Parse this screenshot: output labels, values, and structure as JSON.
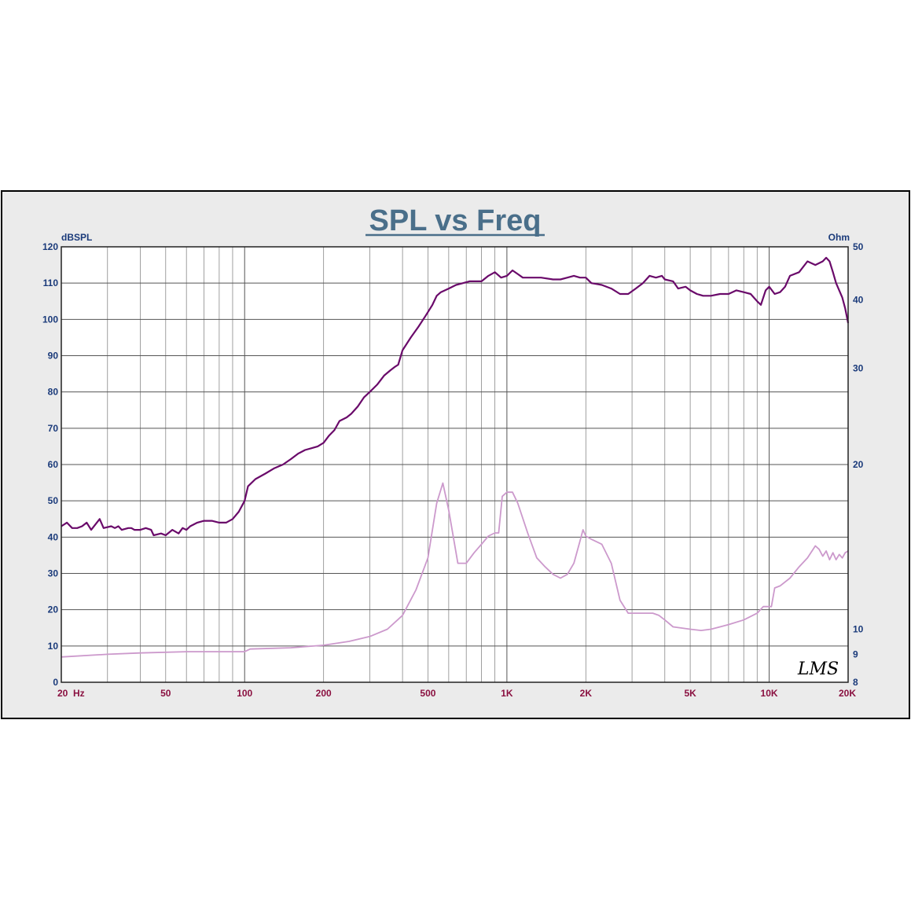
{
  "chart_data": {
    "type": "line",
    "title": "SPL vs Freq",
    "ylabel_left": "dBSPL",
    "ylabel_right": "Ohm",
    "x_scale": "log",
    "xlim": [
      20,
      20000
    ],
    "ylim_left": [
      0,
      120
    ],
    "ylim_right": [
      8,
      50
    ],
    "y_left_ticks": [
      0,
      10,
      20,
      30,
      40,
      50,
      60,
      70,
      80,
      90,
      100,
      110,
      120
    ],
    "y_right_ticks": [
      8,
      9,
      10,
      20,
      30,
      40,
      50
    ],
    "x_tick_labels": [
      {
        "value": 20,
        "label": "20  Hz"
      },
      {
        "value": 50,
        "label": "50"
      },
      {
        "value": 100,
        "label": "100"
      },
      {
        "value": 200,
        "label": "200"
      },
      {
        "value": 500,
        "label": "500"
      },
      {
        "value": 1000,
        "label": "1K"
      },
      {
        "value": 2000,
        "label": "2K"
      },
      {
        "value": 5000,
        "label": "5K"
      },
      {
        "value": 10000,
        "label": "10K"
      },
      {
        "value": 20000,
        "label": "20K"
      }
    ],
    "grid": true,
    "watermark": "LMS",
    "series": [
      {
        "axis": "left",
        "color": "#6a0a6a",
        "points": [
          [
            20,
            43
          ],
          [
            21,
            44
          ],
          [
            22,
            42.5
          ],
          [
            23,
            42.5
          ],
          [
            24,
            43
          ],
          [
            25,
            44
          ],
          [
            26,
            42
          ],
          [
            28,
            45
          ],
          [
            29,
            42.5
          ],
          [
            31,
            43
          ],
          [
            32,
            42.5
          ],
          [
            33,
            43
          ],
          [
            34,
            42
          ],
          [
            36,
            42.5
          ],
          [
            37,
            42.5
          ],
          [
            38,
            42
          ],
          [
            40,
            42
          ],
          [
            42,
            42.5
          ],
          [
            44,
            42
          ],
          [
            45,
            40.5
          ],
          [
            48,
            41
          ],
          [
            50,
            40.5
          ],
          [
            53,
            42
          ],
          [
            56,
            41
          ],
          [
            58,
            42.5
          ],
          [
            60,
            42
          ],
          [
            62,
            43
          ],
          [
            66,
            44
          ],
          [
            70,
            44.5
          ],
          [
            75,
            44.5
          ],
          [
            80,
            44
          ],
          [
            85,
            44
          ],
          [
            90,
            45
          ],
          [
            95,
            47
          ],
          [
            100,
            50
          ],
          [
            103,
            54
          ],
          [
            110,
            56
          ],
          [
            120,
            57.5
          ],
          [
            130,
            59
          ],
          [
            140,
            60
          ],
          [
            150,
            61.5
          ],
          [
            160,
            63
          ],
          [
            170,
            64
          ],
          [
            180,
            64.5
          ],
          [
            190,
            65
          ],
          [
            200,
            66
          ],
          [
            210,
            68
          ],
          [
            220,
            69.5
          ],
          [
            230,
            72
          ],
          [
            245,
            73
          ],
          [
            255,
            74
          ],
          [
            270,
            76
          ],
          [
            285,
            78.5
          ],
          [
            300,
            80
          ],
          [
            320,
            82
          ],
          [
            340,
            84.5
          ],
          [
            360,
            86
          ],
          [
            375,
            87
          ],
          [
            385,
            87.5
          ],
          [
            400,
            91.5
          ],
          [
            430,
            95
          ],
          [
            460,
            98
          ],
          [
            490,
            101
          ],
          [
            520,
            104
          ],
          [
            540,
            106.5
          ],
          [
            560,
            107.5
          ],
          [
            600,
            108.5
          ],
          [
            640,
            109.5
          ],
          [
            680,
            110
          ],
          [
            720,
            110.5
          ],
          [
            800,
            110.5
          ],
          [
            850,
            112
          ],
          [
            900,
            113
          ],
          [
            950,
            111.5
          ],
          [
            1000,
            112
          ],
          [
            1050,
            113.5
          ],
          [
            1100,
            112.5
          ],
          [
            1150,
            111.5
          ],
          [
            1250,
            111.5
          ],
          [
            1350,
            111.5
          ],
          [
            1500,
            111
          ],
          [
            1600,
            111
          ],
          [
            1700,
            111.5
          ],
          [
            1800,
            112
          ],
          [
            1900,
            111.5
          ],
          [
            2000,
            111.5
          ],
          [
            2100,
            110
          ],
          [
            2300,
            109.5
          ],
          [
            2500,
            108.5
          ],
          [
            2700,
            107
          ],
          [
            2900,
            107
          ],
          [
            3100,
            108.5
          ],
          [
            3300,
            110
          ],
          [
            3500,
            112
          ],
          [
            3700,
            111.5
          ],
          [
            3900,
            112
          ],
          [
            4000,
            111
          ],
          [
            4300,
            110.5
          ],
          [
            4500,
            108.5
          ],
          [
            4800,
            109
          ],
          [
            5000,
            108
          ],
          [
            5300,
            107
          ],
          [
            5600,
            106.5
          ],
          [
            6000,
            106.5
          ],
          [
            6500,
            107
          ],
          [
            7000,
            107
          ],
          [
            7500,
            108
          ],
          [
            8000,
            107.5
          ],
          [
            8500,
            107
          ],
          [
            9000,
            105
          ],
          [
            9300,
            104
          ],
          [
            9700,
            108
          ],
          [
            10000,
            109
          ],
          [
            10500,
            107
          ],
          [
            11000,
            107.5
          ],
          [
            11500,
            109
          ],
          [
            12000,
            112
          ],
          [
            13000,
            113
          ],
          [
            14000,
            116
          ],
          [
            15000,
            115
          ],
          [
            16000,
            116
          ],
          [
            16500,
            117
          ],
          [
            17000,
            116
          ],
          [
            17500,
            113
          ],
          [
            18000,
            110
          ],
          [
            19000,
            106
          ],
          [
            19500,
            103
          ],
          [
            20000,
            99
          ]
        ]
      },
      {
        "axis": "right",
        "color": "#cc99cc",
        "points": [
          [
            20,
            8.9
          ],
          [
            30,
            9
          ],
          [
            40,
            9.05
          ],
          [
            60,
            9.1
          ],
          [
            80,
            9.1
          ],
          [
            100,
            9.1
          ],
          [
            105,
            9.2
          ],
          [
            150,
            9.25
          ],
          [
            200,
            9.35
          ],
          [
            250,
            9.5
          ],
          [
            300,
            9.7
          ],
          [
            350,
            10
          ],
          [
            400,
            10.6
          ],
          [
            450,
            11.8
          ],
          [
            500,
            13.5
          ],
          [
            540,
            17
          ],
          [
            570,
            18.5
          ],
          [
            600,
            16.5
          ],
          [
            650,
            13.2
          ],
          [
            700,
            13.2
          ],
          [
            750,
            13.8
          ],
          [
            800,
            14.3
          ],
          [
            850,
            14.8
          ],
          [
            900,
            15
          ],
          [
            930,
            15
          ],
          [
            960,
            17.5
          ],
          [
            1000,
            17.8
          ],
          [
            1050,
            17.8
          ],
          [
            1100,
            17
          ],
          [
            1200,
            15
          ],
          [
            1300,
            13.5
          ],
          [
            1400,
            13
          ],
          [
            1500,
            12.6
          ],
          [
            1600,
            12.4
          ],
          [
            1700,
            12.6
          ],
          [
            1800,
            13.2
          ],
          [
            1900,
            14.5
          ],
          [
            1950,
            15.2
          ],
          [
            2000,
            14.8
          ],
          [
            2100,
            14.6
          ],
          [
            2300,
            14.3
          ],
          [
            2500,
            13.2
          ],
          [
            2700,
            11.3
          ],
          [
            2900,
            10.7
          ],
          [
            3100,
            10.7
          ],
          [
            3300,
            10.7
          ],
          [
            3600,
            10.7
          ],
          [
            3800,
            10.6
          ],
          [
            4000,
            10.4
          ],
          [
            4300,
            10.1
          ],
          [
            5000,
            10
          ],
          [
            5500,
            9.95
          ],
          [
            6000,
            10
          ],
          [
            6500,
            10.1
          ],
          [
            7000,
            10.2
          ],
          [
            8000,
            10.4
          ],
          [
            9000,
            10.7
          ],
          [
            9500,
            11
          ],
          [
            10000,
            11
          ],
          [
            10200,
            11
          ],
          [
            10500,
            11.9
          ],
          [
            11000,
            12
          ],
          [
            12000,
            12.4
          ],
          [
            13000,
            13
          ],
          [
            14000,
            13.5
          ],
          [
            15000,
            14.2
          ],
          [
            15500,
            14
          ],
          [
            16000,
            13.6
          ],
          [
            16500,
            13.9
          ],
          [
            17000,
            13.4
          ],
          [
            17500,
            13.8
          ],
          [
            18000,
            13.4
          ],
          [
            18500,
            13.7
          ],
          [
            19000,
            13.5
          ],
          [
            19500,
            13.8
          ],
          [
            20000,
            13.9
          ]
        ]
      }
    ]
  }
}
